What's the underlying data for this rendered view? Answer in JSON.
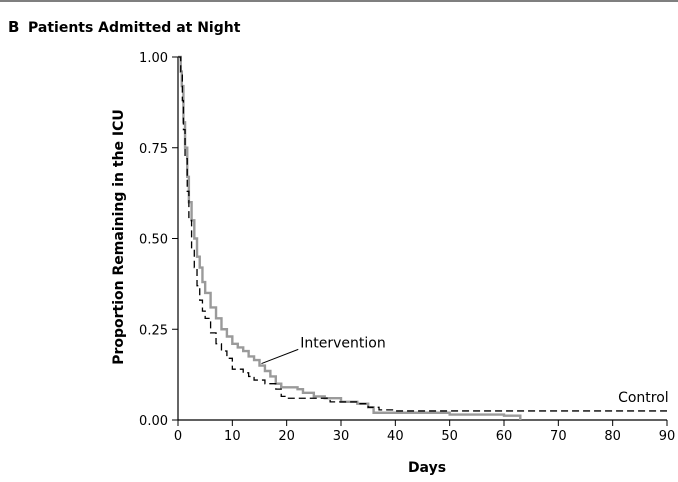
{
  "chart_data": {
    "type": "line",
    "panel_label": "B",
    "title": "Patients Admitted at Night",
    "xlabel": "Days",
    "ylabel": "Proportion Remaining in the ICU",
    "xlim": [
      0,
      90
    ],
    "ylim": [
      0,
      1
    ],
    "x_ticks": [
      0,
      10,
      20,
      30,
      40,
      50,
      60,
      70,
      80,
      90
    ],
    "y_ticks": [
      "0.00",
      "0.25",
      "0.50",
      "0.75",
      "1.00"
    ],
    "grid": false,
    "legend": "none",
    "series": [
      {
        "name": "Intervention",
        "color": "#9a9a9a",
        "style": "solid",
        "points": [
          [
            0,
            1.0
          ],
          [
            0.5,
            0.96
          ],
          [
            0.7,
            0.92
          ],
          [
            1,
            0.82
          ],
          [
            1.3,
            0.75
          ],
          [
            1.7,
            0.67
          ],
          [
            2,
            0.6
          ],
          [
            2.5,
            0.55
          ],
          [
            3,
            0.5
          ],
          [
            3.5,
            0.45
          ],
          [
            4,
            0.42
          ],
          [
            4.5,
            0.38
          ],
          [
            5,
            0.35
          ],
          [
            6,
            0.31
          ],
          [
            7,
            0.28
          ],
          [
            8,
            0.25
          ],
          [
            9,
            0.23
          ],
          [
            10,
            0.21
          ],
          [
            11,
            0.2
          ],
          [
            12,
            0.19
          ],
          [
            13,
            0.175
          ],
          [
            14,
            0.165
          ],
          [
            15,
            0.15
          ],
          [
            16,
            0.135
          ],
          [
            17,
            0.12
          ],
          [
            18,
            0.1
          ],
          [
            19,
            0.09
          ],
          [
            22,
            0.085
          ],
          [
            23,
            0.075
          ],
          [
            25,
            0.065
          ],
          [
            27,
            0.06
          ],
          [
            30,
            0.05
          ],
          [
            33,
            0.045
          ],
          [
            35,
            0.035
          ],
          [
            36,
            0.02
          ],
          [
            40,
            0.02
          ],
          [
            50,
            0.015
          ],
          [
            60,
            0.012
          ],
          [
            63,
            0.0
          ]
        ]
      },
      {
        "name": "Control",
        "color": "#000000",
        "style": "dashed",
        "points": [
          [
            0,
            1.0
          ],
          [
            0.5,
            0.95
          ],
          [
            0.8,
            0.88
          ],
          [
            1,
            0.8
          ],
          [
            1.3,
            0.72
          ],
          [
            1.7,
            0.63
          ],
          [
            2,
            0.55
          ],
          [
            2.5,
            0.47
          ],
          [
            3,
            0.42
          ],
          [
            3.5,
            0.37
          ],
          [
            4,
            0.33
          ],
          [
            4.5,
            0.3
          ],
          [
            5,
            0.28
          ],
          [
            6,
            0.24
          ],
          [
            7,
            0.21
          ],
          [
            8,
            0.19
          ],
          [
            9,
            0.17
          ],
          [
            10,
            0.14
          ],
          [
            12,
            0.13
          ],
          [
            13,
            0.12
          ],
          [
            14,
            0.11
          ],
          [
            16,
            0.1
          ],
          [
            18,
            0.085
          ],
          [
            19,
            0.065
          ],
          [
            20,
            0.06
          ],
          [
            25,
            0.06
          ],
          [
            28,
            0.05
          ],
          [
            33,
            0.045
          ],
          [
            35,
            0.035
          ],
          [
            37,
            0.028
          ],
          [
            40,
            0.025
          ],
          [
            90,
            0.025
          ]
        ]
      }
    ],
    "annotations": [
      {
        "text": "Intervention",
        "x": 22.5,
        "y": 0.2,
        "pointer_to": [
          15,
          0.15
        ]
      },
      {
        "text": "Control",
        "x": 81,
        "y": 0.05
      }
    ]
  }
}
